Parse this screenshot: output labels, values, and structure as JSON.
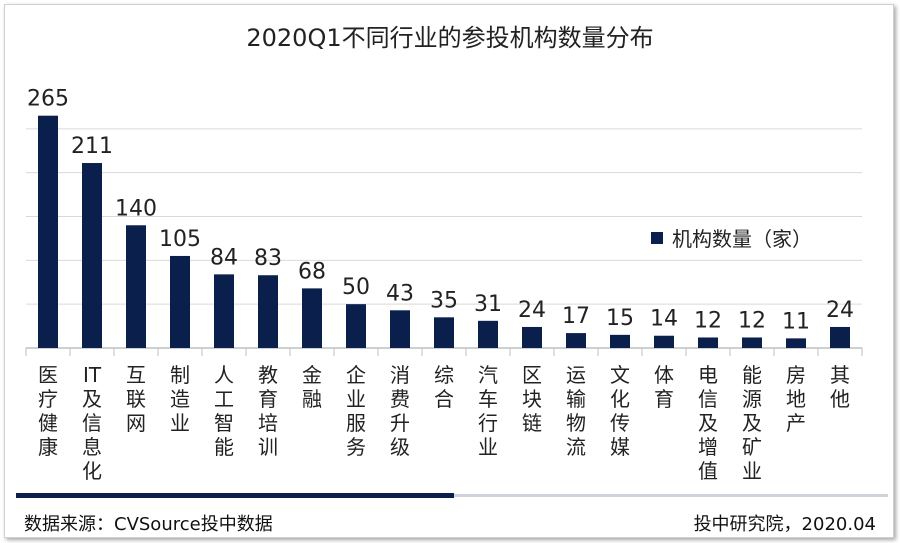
{
  "colors": {
    "bar": "#0b1f4d",
    "grid": "#d9d9d9",
    "axis": "#bfbfbf",
    "text": "#222222"
  },
  "chart_data": {
    "type": "bar",
    "title": "2020Q1不同行业的参投机构数量分布",
    "categories": [
      "医疗健康",
      "IT及信息化",
      "互联网",
      "制造业",
      "人工智能",
      "教育培训",
      "金融",
      "企业服务",
      "消费升级",
      "综合",
      "汽车行业",
      "区块链",
      "运输物流",
      "文化传媒",
      "体育",
      "电信及增值",
      "能源及矿业",
      "房地产",
      "其他"
    ],
    "series": [
      {
        "name": "机构数量（家）",
        "values": [
          265,
          211,
          140,
          105,
          84,
          83,
          68,
          50,
          43,
          35,
          31,
          24,
          17,
          15,
          14,
          12,
          12,
          11,
          24
        ]
      }
    ],
    "ylim": [
      0,
      300
    ],
    "grid": true,
    "legend": "right",
    "data_labels": true
  },
  "footer": {
    "source": "数据来源：CVSource投中数据",
    "credit": "投中研究院，2020.04"
  }
}
